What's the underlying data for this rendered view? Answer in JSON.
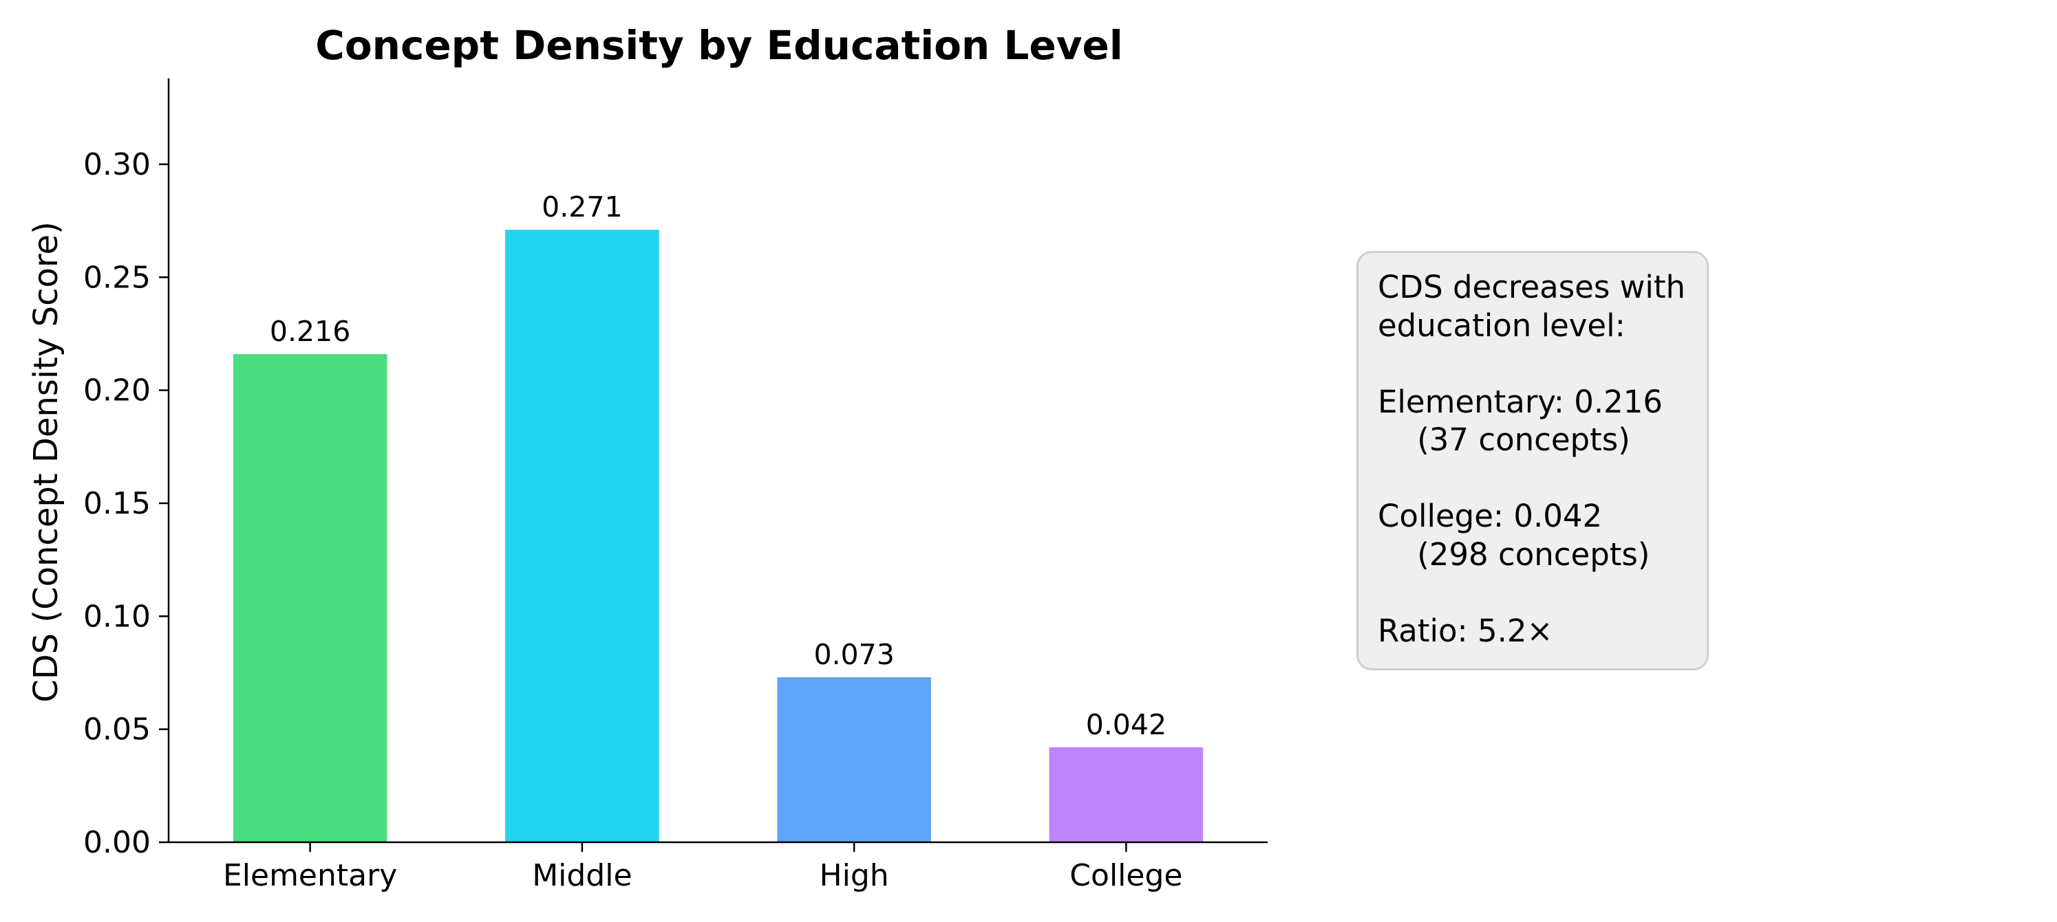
{
  "chart_data": {
    "type": "bar",
    "title": "Concept Density by Education Level",
    "xlabel": "",
    "ylabel": "CDS (Concept Density Score)",
    "categories": [
      "Elementary",
      "Middle",
      "High",
      "College"
    ],
    "values": [
      0.216,
      0.271,
      0.073,
      0.042
    ],
    "value_labels": [
      "0.216",
      "0.271",
      "0.073",
      "0.042"
    ],
    "colors": [
      "#4ade80",
      "#22d3ee",
      "#60a5fa",
      "#c084fc"
    ],
    "ylim": [
      0,
      0.338
    ],
    "yticks": [
      0.0,
      0.05,
      0.1,
      0.15,
      0.2,
      0.25,
      0.3
    ],
    "ytick_labels": [
      "0.00",
      "0.05",
      "0.10",
      "0.15",
      "0.20",
      "0.25",
      "0.30"
    ],
    "grid": false,
    "annotation": {
      "lines": [
        "CDS decreases with",
        "education level:",
        "",
        "Elementary: 0.216",
        "    (37 concepts)",
        "",
        "College: 0.042",
        "    (298 concepts)",
        "",
        "Ratio: 5.2×"
      ]
    }
  }
}
